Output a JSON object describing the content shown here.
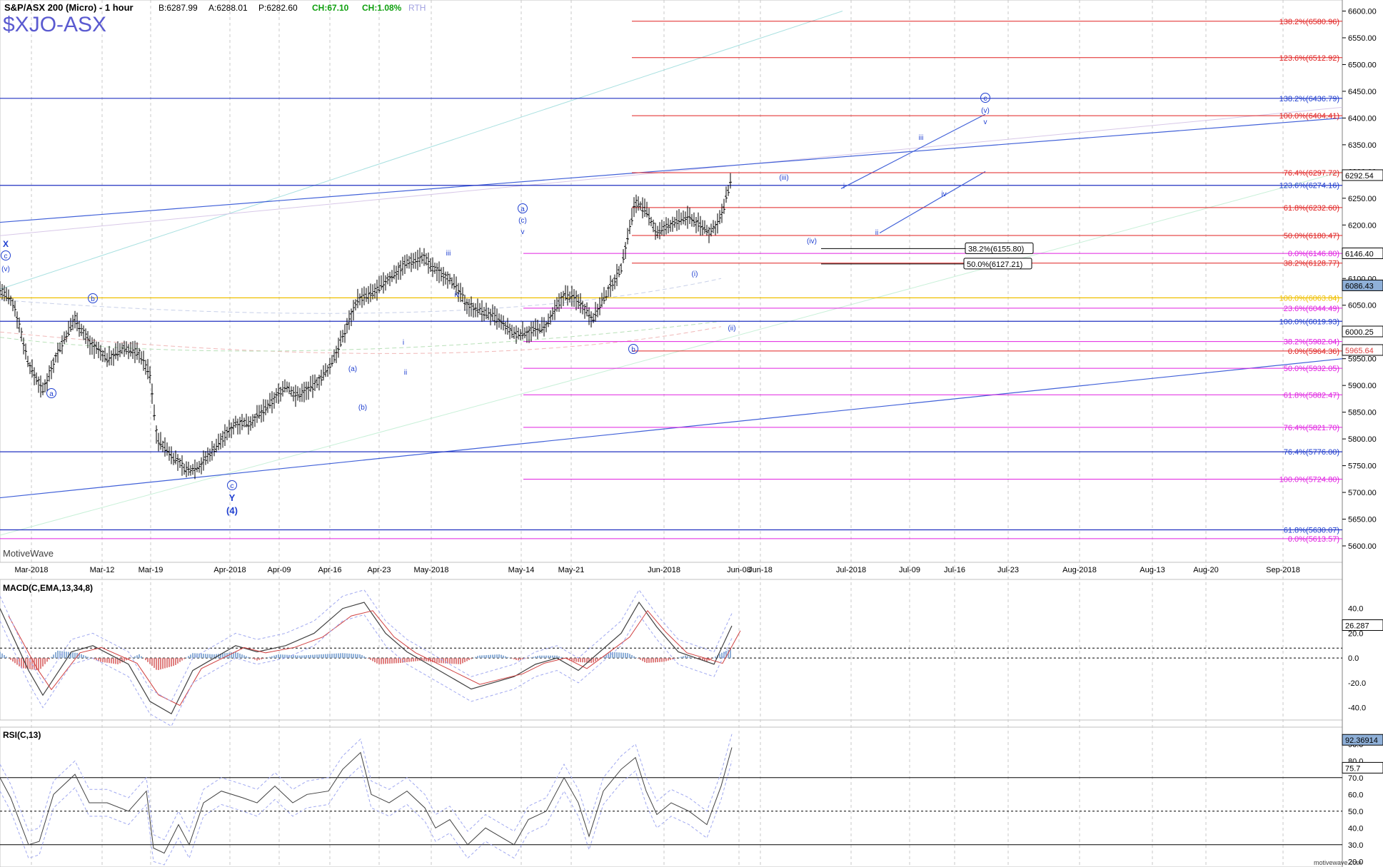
{
  "header": {
    "instrument": "S&P/ASX 200 (Micro) - 1 hour",
    "bid": "B:6287.99",
    "ask": "A:6288.01",
    "price": "P:6282.60",
    "change": "CH:67.10",
    "change_pct": "CH:1.08%",
    "session": "RTH",
    "symbol": "$XJO-ASX",
    "watermark": "MotiveWave",
    "footer_brand": "motivewave.com"
  },
  "colors": {
    "bars": "#000000",
    "wave_labels": "#1f3fd0",
    "fib_red": "#e02020",
    "fib_magenta": "#e020e0",
    "fib_blue": "#1f3fd0",
    "fib_orange": "#f0c000",
    "macd_pos": "#8fb0d8",
    "macd_neg": "#e08080",
    "rsi_fill": "#b8b8d8"
  },
  "chart_data": [
    {
      "type": "candlestick",
      "title": "S&P/ASX 200 (Micro) - 1 hour",
      "ylim": [
        5580,
        6610
      ],
      "y_ticks": [
        "6600.00",
        "6550.00",
        "6500.00",
        "6450.00",
        "6400.00",
        "6350.00",
        "6300.00",
        "6250.00",
        "6200.00",
        "6150.00",
        "6100.00",
        "6050.00",
        "6000.00",
        "5950.00",
        "5900.00",
        "5850.00",
        "5800.00",
        "5750.00",
        "5700.00",
        "5650.00",
        "5600.00"
      ],
      "x_tick_labels": [
        "Mar-2018",
        "Mar-12",
        "Mar-19",
        "Apr-2018",
        "Apr-09",
        "Apr-16",
        "Apr-23",
        "May-2018",
        "May-14",
        "May-21",
        "Jun-2018",
        "Jun-08",
        "Jun-18",
        "Jul-2018",
        "Jul-09",
        "Jul-16",
        "Jul-23",
        "Aug-2018",
        "Aug-13",
        "Aug-20",
        "Sep-2018"
      ],
      "price_path": [
        [
          0,
          6080
        ],
        [
          20,
          6050
        ],
        [
          40,
          5940
        ],
        [
          60,
          5890
        ],
        [
          80,
          5960
        ],
        [
          105,
          6025
        ],
        [
          125,
          5980
        ],
        [
          150,
          5950
        ],
        [
          175,
          5970
        ],
        [
          195,
          5960
        ],
        [
          210,
          5920
        ],
        [
          220,
          5800
        ],
        [
          240,
          5770
        ],
        [
          262,
          5740
        ],
        [
          280,
          5750
        ],
        [
          305,
          5790
        ],
        [
          330,
          5830
        ],
        [
          350,
          5830
        ],
        [
          375,
          5860
        ],
        [
          400,
          5900
        ],
        [
          415,
          5880
        ],
        [
          440,
          5900
        ],
        [
          460,
          5930
        ],
        [
          480,
          5990
        ],
        [
          500,
          6060
        ],
        [
          520,
          6070
        ],
        [
          545,
          6100
        ],
        [
          570,
          6130
        ],
        [
          593,
          6140
        ],
        [
          605,
          6120
        ],
        [
          630,
          6100
        ],
        [
          655,
          6050
        ],
        [
          690,
          6030
        ],
        [
          720,
          5995
        ],
        [
          740,
          6000
        ],
        [
          765,
          6010
        ],
        [
          790,
          6070
        ],
        [
          810,
          6060
        ],
        [
          830,
          6025
        ],
        [
          845,
          6060
        ],
        [
          870,
          6120
        ],
        [
          890,
          6245
        ],
        [
          905,
          6225
        ],
        [
          920,
          6185
        ],
        [
          945,
          6205
        ],
        [
          965,
          6215
        ],
        [
          985,
          6195
        ],
        [
          995,
          6185
        ],
        [
          1010,
          6215
        ],
        [
          1025,
          6290
        ]
      ],
      "last_price": "6292.54",
      "price_tags": [
        "6292.54",
        "6146.40",
        "6086.43",
        "6000.25",
        "5965.64"
      ],
      "fib_levels": [
        {
          "label": "138.2%(6580.96)",
          "color": "red"
        },
        {
          "label": "123.6%(6512.92)",
          "color": "red"
        },
        {
          "label": "138.2%(6436.79)",
          "color": "blue"
        },
        {
          "label": "100.0%(6404.41)",
          "color": "red"
        },
        {
          "label": "76.4%(6297.72)",
          "color": "red"
        },
        {
          "label": "123.6%(6274.16)",
          "color": "blue"
        },
        {
          "label": "61.8%(6232.60)",
          "color": "red"
        },
        {
          "label": "50.0%(6180.47)",
          "color": "red"
        },
        {
          "label": "0.0%(6146.80)",
          "color": "magenta"
        },
        {
          "label": "38.2%(6128.77)",
          "color": "red"
        },
        {
          "label": "100.0%(6063.84)",
          "color": "orange"
        },
        {
          "label": "23.6%(6044.49)",
          "color": "magenta"
        },
        {
          "label": "100.0%(6019.93)",
          "color": "blue"
        },
        {
          "label": "38.2%(5982.04)",
          "color": "magenta"
        },
        {
          "label": "0.0%(5964.36)",
          "color": "red"
        },
        {
          "label": "50.0%(5932.05)",
          "color": "magenta"
        },
        {
          "label": "61.8%(5882.47)",
          "color": "magenta"
        },
        {
          "label": "76.4%(5821.70)",
          "color": "magenta"
        },
        {
          "label": "76.4%(5776.00)",
          "color": "blue"
        },
        {
          "label": "100.0%(5724.80)",
          "color": "magenta"
        },
        {
          "label": "61.8%(5630.07)",
          "color": "blue"
        },
        {
          "label": "0.0%(5613.57)",
          "color": "magenta"
        }
      ],
      "boxed_labels": [
        "38.2%(6155.80)",
        "50.0%(6127.21)"
      ],
      "wave_labels": [
        "X",
        "c",
        "(v)",
        "b",
        "a",
        "c",
        "Y",
        "(4)",
        "(a)",
        "(b)",
        "i",
        "ii",
        "iii",
        "iv",
        "a",
        "(c)",
        "v",
        "b",
        "(i)",
        "(ii)",
        "(iii)",
        "(iv)",
        "i",
        "ii",
        "iii",
        "iv",
        "c",
        "(v)",
        "v"
      ]
    },
    {
      "type": "line",
      "title": "MACD(C,EMA,13,34,8)",
      "ylim": [
        -50,
        60
      ],
      "y_ticks": [
        "40.0",
        "20.0",
        "0.0",
        "-20.0",
        "-40.0"
      ],
      "last_value": "26.287",
      "series": [
        {
          "name": "MACD"
        },
        {
          "name": "Signal"
        }
      ],
      "macd_path": [
        [
          0,
          40
        ],
        [
          40,
          -10
        ],
        [
          60,
          -30
        ],
        [
          100,
          5
        ],
        [
          130,
          10
        ],
        [
          180,
          -5
        ],
        [
          210,
          -35
        ],
        [
          240,
          -45
        ],
        [
          270,
          -10
        ],
        [
          300,
          0
        ],
        [
          330,
          10
        ],
        [
          360,
          5
        ],
        [
          400,
          10
        ],
        [
          440,
          20
        ],
        [
          480,
          40
        ],
        [
          510,
          45
        ],
        [
          540,
          20
        ],
        [
          570,
          5
        ],
        [
          600,
          -5
        ],
        [
          630,
          -15
        ],
        [
          660,
          -25
        ],
        [
          690,
          -20
        ],
        [
          720,
          -15
        ],
        [
          750,
          -5
        ],
        [
          780,
          0
        ],
        [
          810,
          -10
        ],
        [
          840,
          5
        ],
        [
          870,
          20
        ],
        [
          895,
          45
        ],
        [
          920,
          25
        ],
        [
          950,
          5
        ],
        [
          975,
          0
        ],
        [
          1000,
          -5
        ],
        [
          1025,
          26
        ]
      ],
      "histogram_path": [
        [
          0,
          5
        ],
        [
          30,
          -8
        ],
        [
          55,
          -10
        ],
        [
          80,
          6
        ],
        [
          110,
          4
        ],
        [
          140,
          -3
        ],
        [
          165,
          -5
        ],
        [
          195,
          3
        ],
        [
          220,
          -10
        ],
        [
          245,
          -6
        ],
        [
          270,
          4
        ],
        [
          300,
          3
        ],
        [
          330,
          5
        ],
        [
          360,
          -2
        ],
        [
          390,
          3
        ],
        [
          420,
          2
        ],
        [
          450,
          3
        ],
        [
          480,
          4
        ],
        [
          505,
          3
        ],
        [
          530,
          -5
        ],
        [
          560,
          -4
        ],
        [
          590,
          -2
        ],
        [
          615,
          -4
        ],
        [
          645,
          -5
        ],
        [
          670,
          2
        ],
        [
          700,
          3
        ],
        [
          725,
          -2
        ],
        [
          755,
          2
        ],
        [
          780,
          2
        ],
        [
          805,
          -3
        ],
        [
          830,
          -4
        ],
        [
          855,
          5
        ],
        [
          880,
          4
        ],
        [
          905,
          -4
        ],
        [
          930,
          -3
        ],
        [
          960,
          2
        ],
        [
          990,
          -3
        ],
        [
          1010,
          4
        ],
        [
          1025,
          8
        ]
      ]
    },
    {
      "type": "line",
      "title": "RSI(C,13)",
      "ylim": [
        18,
        98
      ],
      "y_ticks": [
        "90.0",
        "80.0",
        "70.0",
        "60.0",
        "50.0",
        "40.0",
        "30.0",
        "20.0"
      ],
      "last_values": [
        "92.36914",
        "75.7"
      ],
      "series": [
        {
          "name": "RSI"
        }
      ],
      "rsi_path": [
        [
          0,
          70
        ],
        [
          15,
          58
        ],
        [
          40,
          30
        ],
        [
          55,
          32
        ],
        [
          75,
          60
        ],
        [
          105,
          72
        ],
        [
          125,
          55
        ],
        [
          150,
          55
        ],
        [
          180,
          50
        ],
        [
          205,
          62
        ],
        [
          215,
          28
        ],
        [
          230,
          25
        ],
        [
          250,
          42
        ],
        [
          265,
          30
        ],
        [
          285,
          55
        ],
        [
          310,
          62
        ],
        [
          340,
          58
        ],
        [
          360,
          55
        ],
        [
          385,
          65
        ],
        [
          410,
          55
        ],
        [
          430,
          60
        ],
        [
          460,
          62
        ],
        [
          480,
          75
        ],
        [
          505,
          85
        ],
        [
          520,
          60
        ],
        [
          545,
          55
        ],
        [
          570,
          62
        ],
        [
          595,
          52
        ],
        [
          610,
          40
        ],
        [
          630,
          45
        ],
        [
          655,
          30
        ],
        [
          680,
          40
        ],
        [
          700,
          35
        ],
        [
          720,
          30
        ],
        [
          740,
          45
        ],
        [
          765,
          50
        ],
        [
          790,
          70
        ],
        [
          810,
          55
        ],
        [
          825,
          35
        ],
        [
          845,
          62
        ],
        [
          870,
          75
        ],
        [
          890,
          82
        ],
        [
          905,
          62
        ],
        [
          920,
          48
        ],
        [
          940,
          55
        ],
        [
          965,
          50
        ],
        [
          990,
          42
        ],
        [
          1010,
          65
        ],
        [
          1025,
          88
        ]
      ]
    }
  ]
}
